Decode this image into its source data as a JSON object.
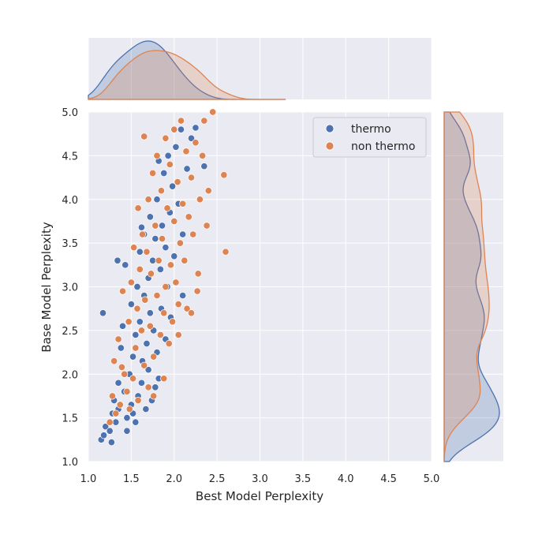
{
  "chart_data": {
    "type": "scatter",
    "subtype": "jointplot with marginal kde",
    "title": "",
    "xlabel": "Best Model Perplexity",
    "ylabel": "Base Model Perplexity",
    "xlim": [
      1.0,
      5.0
    ],
    "ylim": [
      1.0,
      5.0
    ],
    "xticks": [
      "1.0",
      "1.5",
      "2.0",
      "2.5",
      "3.0",
      "3.5",
      "4.0",
      "4.5",
      "5.0"
    ],
    "yticks": [
      "1.0",
      "1.5",
      "2.0",
      "2.5",
      "3.0",
      "3.5",
      "4.0",
      "4.5",
      "5.0"
    ],
    "grid": true,
    "legend": "top-right",
    "style": {
      "background": "#eaeaf2",
      "grid_color": "#ffffff",
      "point_edge": "#ffffff"
    },
    "series": [
      {
        "name": "thermo",
        "color": "#4c72b0",
        "points": [
          [
            1.15,
            1.25
          ],
          [
            1.18,
            1.3
          ],
          [
            1.2,
            1.4
          ],
          [
            1.17,
            2.7
          ],
          [
            1.25,
            1.35
          ],
          [
            1.27,
            1.22
          ],
          [
            1.28,
            1.55
          ],
          [
            1.3,
            1.7
          ],
          [
            1.32,
            1.45
          ],
          [
            1.35,
            1.6
          ],
          [
            1.35,
            1.9
          ],
          [
            1.38,
            2.3
          ],
          [
            1.4,
            2.55
          ],
          [
            1.42,
            1.8
          ],
          [
            1.43,
            3.25
          ],
          [
            1.45,
            1.5
          ],
          [
            1.48,
            2.0
          ],
          [
            1.5,
            2.8
          ],
          [
            1.5,
            1.65
          ],
          [
            1.52,
            2.2
          ],
          [
            1.55,
            1.45
          ],
          [
            1.55,
            2.45
          ],
          [
            1.57,
            3.0
          ],
          [
            1.58,
            1.75
          ],
          [
            1.6,
            2.6
          ],
          [
            1.6,
            3.4
          ],
          [
            1.62,
            1.9
          ],
          [
            1.63,
            2.15
          ],
          [
            1.65,
            2.9
          ],
          [
            1.65,
            3.6
          ],
          [
            1.67,
            1.6
          ],
          [
            1.68,
            2.35
          ],
          [
            1.7,
            3.1
          ],
          [
            1.7,
            2.05
          ],
          [
            1.72,
            3.8
          ],
          [
            1.72,
            2.7
          ],
          [
            1.74,
            1.7
          ],
          [
            1.75,
            3.3
          ],
          [
            1.76,
            2.5
          ],
          [
            1.78,
            3.55
          ],
          [
            1.8,
            2.25
          ],
          [
            1.8,
            4.0
          ],
          [
            1.82,
            1.95
          ],
          [
            1.84,
            3.2
          ],
          [
            1.85,
            2.75
          ],
          [
            1.86,
            3.7
          ],
          [
            1.88,
            4.3
          ],
          [
            1.9,
            2.4
          ],
          [
            1.9,
            3.45
          ],
          [
            1.92,
            3.0
          ],
          [
            1.93,
            4.5
          ],
          [
            1.95,
            3.85
          ],
          [
            1.96,
            2.65
          ],
          [
            1.98,
            4.15
          ],
          [
            2.0,
            3.35
          ],
          [
            2.02,
            4.6
          ],
          [
            2.05,
            3.95
          ],
          [
            2.08,
            4.8
          ],
          [
            2.1,
            3.6
          ],
          [
            2.15,
            4.35
          ],
          [
            2.2,
            4.7
          ],
          [
            2.25,
            4.82
          ],
          [
            2.1,
            2.9
          ],
          [
            1.78,
            1.85
          ],
          [
            1.34,
            3.3
          ],
          [
            1.62,
            3.68
          ],
          [
            1.82,
            4.44
          ],
          [
            2.35,
            4.38
          ],
          [
            1.45,
            1.35
          ],
          [
            1.52,
            1.55
          ]
        ]
      },
      {
        "name": "non thermo",
        "color": "#dd8452",
        "points": [
          [
            1.25,
            1.45
          ],
          [
            1.28,
            1.75
          ],
          [
            1.3,
            2.15
          ],
          [
            1.32,
            1.55
          ],
          [
            1.35,
            2.4
          ],
          [
            1.37,
            1.65
          ],
          [
            1.4,
            2.95
          ],
          [
            1.42,
            2.0
          ],
          [
            1.45,
            1.8
          ],
          [
            1.47,
            2.6
          ],
          [
            1.5,
            3.05
          ],
          [
            1.52,
            1.95
          ],
          [
            1.53,
            3.45
          ],
          [
            1.55,
            2.3
          ],
          [
            1.57,
            2.75
          ],
          [
            1.58,
            1.7
          ],
          [
            1.6,
            3.2
          ],
          [
            1.62,
            2.5
          ],
          [
            1.63,
            3.6
          ],
          [
            1.65,
            2.1
          ],
          [
            1.66,
            2.85
          ],
          [
            1.68,
            3.4
          ],
          [
            1.7,
            1.85
          ],
          [
            1.7,
            4.0
          ],
          [
            1.72,
            2.55
          ],
          [
            1.73,
            3.15
          ],
          [
            1.75,
            4.3
          ],
          [
            1.76,
            2.2
          ],
          [
            1.78,
            3.7
          ],
          [
            1.8,
            2.9
          ],
          [
            1.8,
            4.5
          ],
          [
            1.82,
            3.3
          ],
          [
            1.84,
            2.45
          ],
          [
            1.85,
            4.1
          ],
          [
            1.86,
            3.55
          ],
          [
            1.88,
            2.7
          ],
          [
            1.9,
            4.7
          ],
          [
            1.9,
            3.0
          ],
          [
            1.92,
            3.9
          ],
          [
            1.94,
            2.35
          ],
          [
            1.95,
            4.4
          ],
          [
            1.96,
            3.25
          ],
          [
            1.98,
            2.6
          ],
          [
            2.0,
            3.75
          ],
          [
            2.0,
            4.8
          ],
          [
            2.02,
            3.05
          ],
          [
            2.04,
            4.2
          ],
          [
            2.05,
            2.8
          ],
          [
            2.07,
            3.5
          ],
          [
            2.08,
            4.9
          ],
          [
            2.1,
            3.95
          ],
          [
            2.12,
            3.3
          ],
          [
            2.14,
            4.55
          ],
          [
            2.15,
            2.75
          ],
          [
            2.17,
            3.8
          ],
          [
            2.2,
            4.25
          ],
          [
            2.22,
            3.6
          ],
          [
            2.25,
            4.65
          ],
          [
            2.28,
            3.15
          ],
          [
            2.3,
            4.0
          ],
          [
            2.33,
            4.5
          ],
          [
            2.35,
            4.9
          ],
          [
            2.4,
            4.1
          ],
          [
            2.45,
            5.0
          ],
          [
            2.58,
            4.28
          ],
          [
            2.6,
            3.4
          ],
          [
            2.2,
            2.7
          ],
          [
            1.65,
            4.72
          ],
          [
            1.58,
            3.9
          ],
          [
            2.38,
            3.7
          ],
          [
            2.05,
            2.45
          ],
          [
            1.88,
            1.95
          ],
          [
            1.76,
            1.75
          ],
          [
            1.48,
            1.6
          ],
          [
            1.39,
            2.08
          ],
          [
            2.27,
            2.95
          ]
        ]
      }
    ]
  }
}
